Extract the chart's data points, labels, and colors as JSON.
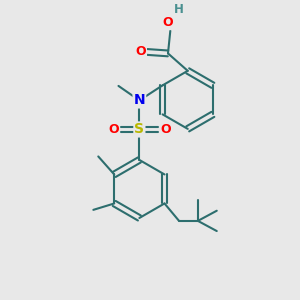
{
  "bg_color": "#e8e8e8",
  "bond_color": "#2d6e6e",
  "bond_width": 1.5,
  "atom_colors": {
    "O": "#ff0000",
    "N": "#0000ee",
    "S": "#b8b800",
    "H": "#4a9090"
  },
  "figsize": [
    3.0,
    3.0
  ],
  "dpi": 100,
  "xlim": [
    0,
    10
  ],
  "ylim": [
    0,
    10
  ]
}
